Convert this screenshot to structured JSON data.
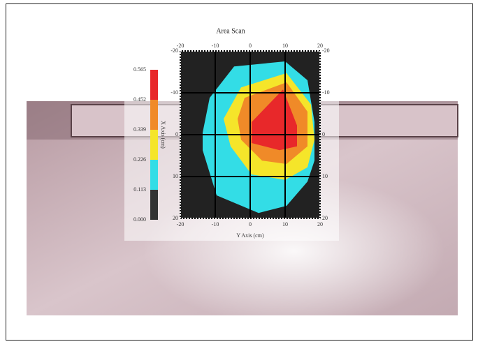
{
  "chart_data": {
    "type": "contour",
    "title": "Area Scan",
    "x_label": "Y Axis (cm)",
    "y_label": "X Axis (cm)",
    "xlim": [
      -20,
      20
    ],
    "xticks": [
      -20,
      -10,
      0,
      10,
      20
    ],
    "ylim": [
      -20,
      20
    ],
    "yticks": [
      -20,
      -10,
      0,
      10,
      20
    ],
    "grid": true,
    "background_color": "#222222",
    "colorbar": {
      "levels": [
        {
          "value": 0,
          "label": "0.000"
        },
        {
          "value": 0.113,
          "label": "0.113"
        },
        {
          "value": 0.226,
          "label": "0.226"
        },
        {
          "value": 0.339,
          "label": "0.339"
        },
        {
          "value": 0.452,
          "label": "0.452"
        },
        {
          "value": 0.565,
          "label": "0.565"
        }
      ],
      "colors": [
        "#333333",
        "#33dde6",
        "#f5e52a",
        "#f08a28",
        "#e8282a"
      ]
    },
    "regions": [
      {
        "level": 0.113,
        "x": [
          -4.6,
          10,
          16.4,
          18.4,
          18.4,
          16.4,
          10.4,
          2.4,
          -9.6,
          -13.6,
          -13.6,
          -11.6
        ],
        "y": [
          -16.3,
          -17.5,
          -13,
          -3,
          6.2,
          11.2,
          17,
          18.7,
          14.5,
          3.7,
          -0.5,
          -8.8
        ]
      },
      {
        "level": 0.226,
        "x": [
          -2.6,
          10.4,
          17.4,
          18.4,
          16.4,
          10,
          0.4,
          -5.6,
          -7.6
        ],
        "y": [
          -11.3,
          -14.7,
          -7.2,
          1.2,
          7.8,
          10.8,
          9.5,
          2.8,
          -3.8
        ]
      },
      {
        "level": 0.339,
        "x": [
          -1.6,
          10.4,
          16.4,
          16.4,
          10.4,
          3.4,
          -2.6,
          -3.6
        ],
        "y": [
          -8.8,
          -12.5,
          -5.5,
          2.8,
          7,
          6.2,
          1.2,
          -3.8
        ]
      },
      {
        "level": 0.452,
        "x": [
          0.4,
          9.4,
          13.4,
          13.4,
          8.4,
          0.4
        ],
        "y": [
          -3,
          -10.8,
          -2.2,
          2.8,
          3.7,
          2
        ]
      }
    ]
  }
}
